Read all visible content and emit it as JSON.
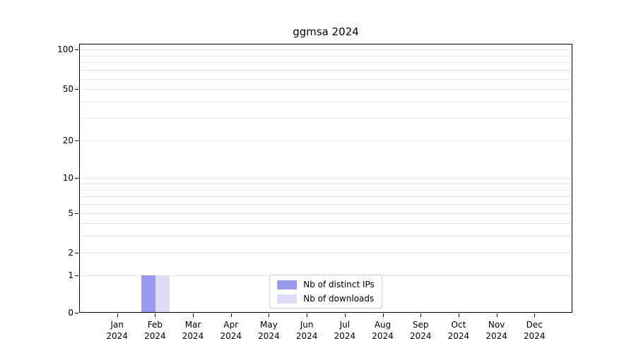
{
  "chart_data": {
    "type": "bar",
    "title": "ggmsa 2024",
    "x_categories": [
      "Jan",
      "Feb",
      "Mar",
      "Apr",
      "May",
      "Jun",
      "Jul",
      "Aug",
      "Sep",
      "Oct",
      "Nov",
      "Dec"
    ],
    "x_year": "2024",
    "series": [
      {
        "name": "Nb of distinct IPs",
        "color": "#9999ee",
        "values": [
          0,
          1,
          0,
          0,
          0,
          0,
          0,
          0,
          0,
          0,
          0,
          0
        ]
      },
      {
        "name": "Nb of downloads",
        "color": "#dcdcf7",
        "values": [
          0,
          1,
          0,
          0,
          0,
          0,
          0,
          0,
          0,
          0,
          0,
          0
        ]
      }
    ],
    "y_axis": {
      "scale": "log-like",
      "tick_values": [
        0,
        1,
        2,
        5,
        10,
        20,
        50,
        100
      ],
      "tick_labels": [
        "0",
        "1",
        "2",
        "5",
        "10",
        "20",
        "50",
        "100"
      ],
      "minor_gridline_values": [
        1,
        2,
        3,
        4,
        5,
        6,
        7,
        8,
        9,
        10,
        20,
        30,
        40,
        50,
        60,
        70,
        80,
        90,
        100
      ],
      "ylim": [
        0,
        110
      ]
    },
    "legend": {
      "position": "lower-center"
    },
    "grid": "horizontal",
    "colors": {
      "gridline": "#e7e7e7",
      "axis": "#000000",
      "legend_border": "#cccccc",
      "text": "#000000"
    }
  }
}
